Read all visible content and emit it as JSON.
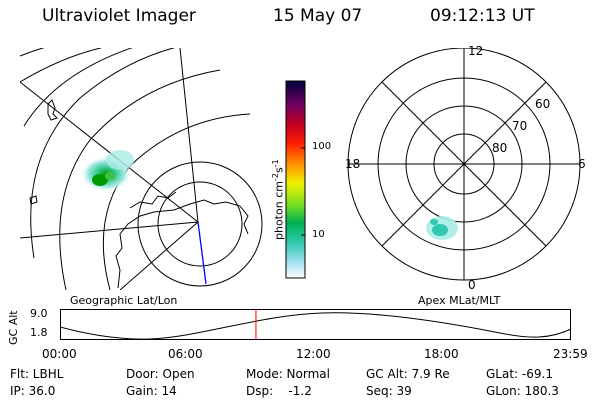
{
  "header": {
    "title": "Ultraviolet Imager",
    "date": "15 May 07",
    "time": "09:12:13 UT"
  },
  "geo_panel": {
    "label": "Geographic Lat/Lon"
  },
  "colorbar": {
    "unit_main": "photon cm",
    "unit_sup1": "-2",
    "unit_mid": "s",
    "unit_sup2": "-1",
    "ticks": [
      "100",
      "10"
    ]
  },
  "polar_panel": {
    "label": "Apex MLat/MLT",
    "mlt_top": "12",
    "mlt_left": "18",
    "mlt_right": "6",
    "mlt_bottom": "0",
    "lat_rings": [
      "60",
      "70",
      "80"
    ]
  },
  "altitude_plot": {
    "ylabel": "GC Alt",
    "ymax": "9.0",
    "ymin": "1.8",
    "time_ticks": [
      "00:00",
      "06:00",
      "12:00",
      "18:00",
      "23:59"
    ],
    "current_time_fraction": 0.383
  },
  "info": {
    "filter": "Flt: LBHL",
    "ip": "IP: 36.0",
    "door": "Door: Open",
    "gain": "Gain: 14",
    "mode": "Mode: Normal",
    "dsp": "Dsp:    -1.2",
    "gc_alt": "GC Alt: 7.9 Re",
    "seq": "Seq: 39",
    "glat": "GLat: -69.1",
    "glon": "GLon: 180.3"
  },
  "colors": {
    "background": "#ffffff",
    "foreground": "#000000",
    "current_time_marker": "#ff0000",
    "coastline_highlight": "#0000ff"
  }
}
